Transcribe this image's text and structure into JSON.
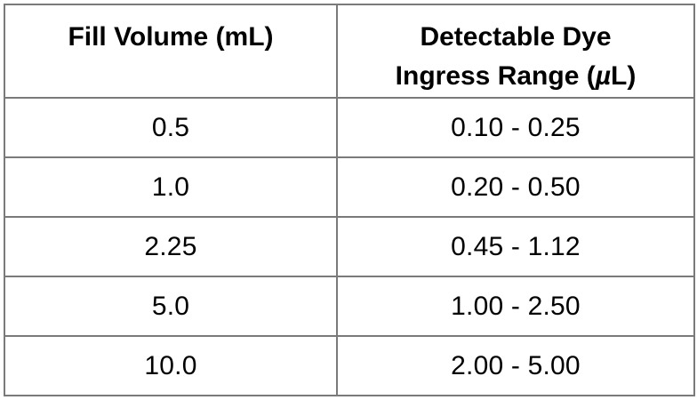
{
  "chart_data": {
    "type": "table",
    "title": "",
    "columns": [
      "Fill Volume (mL)",
      "Detectable Dye Ingress Range (µL)"
    ],
    "rows": [
      [
        "0.5",
        "0.10 - 0.25"
      ],
      [
        "1.0",
        "0.20 - 0.50"
      ],
      [
        "2.25",
        "0.45 - 1.12"
      ],
      [
        "5.0",
        "1.00 - 2.50"
      ],
      [
        "10.0",
        "2.00 - 5.00"
      ]
    ]
  },
  "header": {
    "col1": "Fill Volume (mL)",
    "col2_line1": "Detectable Dye",
    "col2_line2_prefix": "Ingress Range (",
    "col2_mu": "µ",
    "col2_line2_suffix": "L)"
  },
  "colors": {
    "border": "#7a7a7a",
    "text": "#000000",
    "background": "#ffffff"
  }
}
